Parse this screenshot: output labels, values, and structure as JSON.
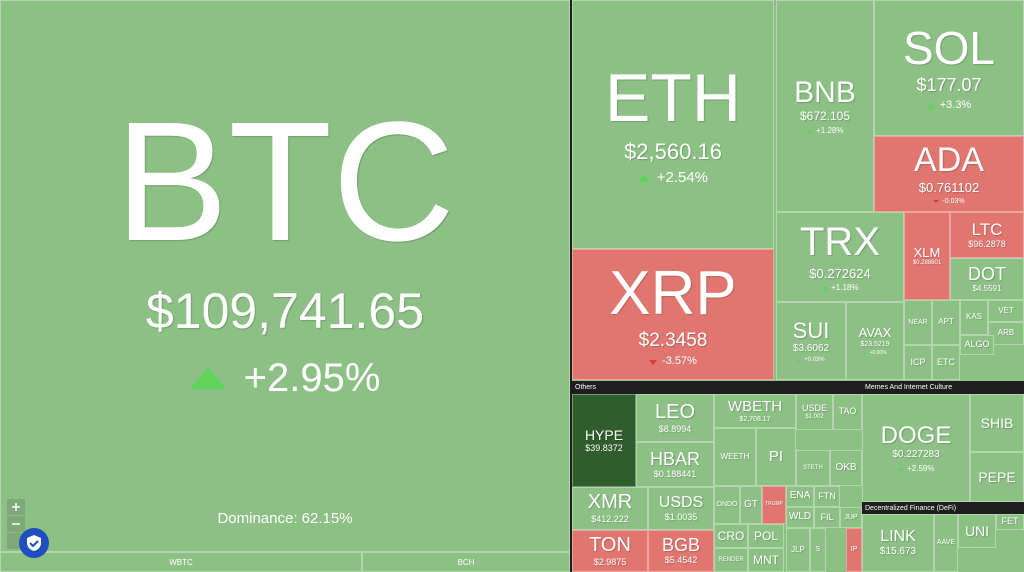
{
  "tiles": [
    {
      "symbol": "BTC",
      "price": "$109,741.65",
      "change": "+2.95%"
    },
    {
      "symbol": "ETH",
      "price": "$2,560.16",
      "change": "+2.54%"
    },
    {
      "symbol": "XRP",
      "price": "$2.3458",
      "change": "-3.57%"
    },
    {
      "symbol": "BNB",
      "price": "$672.105",
      "change": "+1.28%"
    },
    {
      "symbol": "SOL",
      "price": "$177.07",
      "change": "+3.3%"
    },
    {
      "symbol": "ADA",
      "price": "$0.761102",
      "change": "-0.03%"
    },
    {
      "symbol": "TRX",
      "price": "$0.272624",
      "change": "+1.18%"
    },
    {
      "symbol": "SUI",
      "price": "$3.6062",
      "change": "+0.03%"
    },
    {
      "symbol": "AVAX",
      "price": "$23.5219",
      "change": "+0.00%"
    },
    {
      "symbol": "XLM",
      "price": "$0.288801"
    },
    {
      "symbol": "LTC",
      "price": "$96.2878"
    },
    {
      "symbol": "DOT",
      "price": "$4.5591"
    },
    {
      "symbol": "NEAR"
    },
    {
      "symbol": "APT"
    },
    {
      "symbol": "KAS"
    },
    {
      "symbol": "VET"
    },
    {
      "symbol": "ARB"
    },
    {
      "symbol": "ICP"
    },
    {
      "symbol": "ETC"
    },
    {
      "symbol": "ALGO"
    },
    {
      "symbol": "HYPE",
      "price": "$39.8372"
    },
    {
      "symbol": "LEO",
      "price": "$8.8994"
    },
    {
      "symbol": "HBAR",
      "price": "$0.188441"
    },
    {
      "symbol": "WBETH",
      "price": "$2,708.17"
    },
    {
      "symbol": "USDE",
      "price": "$1.002"
    },
    {
      "symbol": "TAO"
    },
    {
      "symbol": "WEETH"
    },
    {
      "symbol": "PI"
    },
    {
      "symbol": "STETH"
    },
    {
      "symbol": "OKB"
    },
    {
      "symbol": "XMR",
      "price": "$412.222"
    },
    {
      "symbol": "USDS",
      "price": "$1.0035"
    },
    {
      "symbol": "TON",
      "price": "$2.9875"
    },
    {
      "symbol": "BGB",
      "price": "$5.4542"
    },
    {
      "symbol": "ONDO"
    },
    {
      "symbol": "GT"
    },
    {
      "symbol": "TRUMP"
    },
    {
      "symbol": "ENA"
    },
    {
      "symbol": "FTN"
    },
    {
      "symbol": "CRO"
    },
    {
      "symbol": "POL"
    },
    {
      "symbol": "RENDER"
    },
    {
      "symbol": "MNT"
    },
    {
      "symbol": "WLD"
    },
    {
      "symbol": "FIL"
    },
    {
      "symbol": "JUP"
    },
    {
      "symbol": "JLP"
    },
    {
      "symbol": "S"
    },
    {
      "symbol": "IP"
    },
    {
      "symbol": "DOGE",
      "price": "$0.227283",
      "change": "+2.59%"
    },
    {
      "symbol": "SHIB"
    },
    {
      "symbol": "PEPE"
    },
    {
      "symbol": "LINK",
      "price": "$15.673"
    },
    {
      "symbol": "AAVE"
    },
    {
      "symbol": "UNI"
    },
    {
      "symbol": "FET"
    }
  ],
  "dominance": "Dominance: 62.15%",
  "bottom": [
    "WBTC",
    "BCH"
  ],
  "sections": [
    "Others",
    "Memes And Internet Culture",
    "Decentralized Finance (DeFi)"
  ]
}
